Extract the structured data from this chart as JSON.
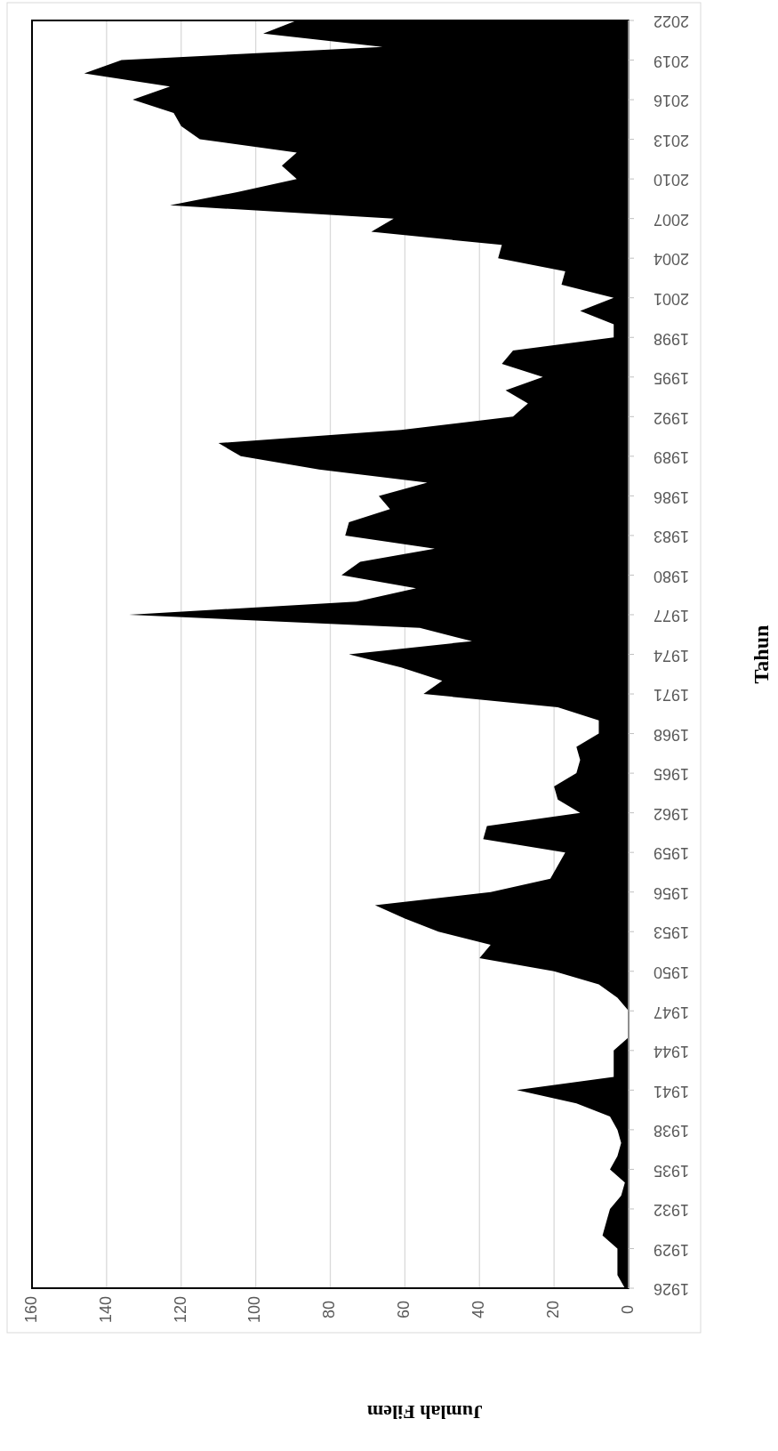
{
  "chart_data": {
    "type": "area",
    "orientation": "horizontal",
    "xlabel": "Jumlah Filem",
    "ylabel": "Tahun",
    "x": [
      1926,
      1927,
      1928,
      1929,
      1930,
      1931,
      1932,
      1933,
      1934,
      1935,
      1936,
      1937,
      1938,
      1939,
      1940,
      1941,
      1942,
      1943,
      1944,
      1945,
      1946,
      1947,
      1948,
      1949,
      1950,
      1951,
      1952,
      1953,
      1954,
      1955,
      1956,
      1957,
      1958,
      1959,
      1960,
      1961,
      1962,
      1963,
      1964,
      1965,
      1966,
      1967,
      1968,
      1969,
      1970,
      1971,
      1972,
      1973,
      1974,
      1975,
      1976,
      1977,
      1978,
      1979,
      1980,
      1981,
      1982,
      1983,
      1984,
      1985,
      1986,
      1987,
      1988,
      1989,
      1990,
      1991,
      1992,
      1993,
      1994,
      1995,
      1996,
      1997,
      1998,
      1999,
      2000,
      2001,
      2002,
      2003,
      2004,
      2005,
      2006,
      2007,
      2008,
      2009,
      2010,
      2011,
      2012,
      2013,
      2014,
      2015,
      2016,
      2017,
      2018,
      2019,
      2020,
      2021,
      2022
    ],
    "series": [
      {
        "color": "#000000",
        "values": [
          1,
          3,
          3,
          3,
          7,
          6,
          5,
          2,
          1,
          5,
          3,
          2,
          3,
          5,
          14,
          30,
          4,
          4,
          4,
          0,
          0,
          0,
          3,
          8,
          20,
          40,
          37,
          51,
          60,
          68,
          37,
          21,
          19,
          17,
          39,
          38,
          13,
          19,
          20,
          14,
          13,
          14,
          8,
          8,
          19,
          55,
          50,
          61,
          75,
          42,
          56,
          134,
          73,
          57,
          77,
          72,
          52,
          76,
          75,
          64,
          67,
          54,
          83,
          104,
          110,
          61,
          31,
          27,
          33,
          23,
          34,
          31,
          4,
          4,
          13,
          4,
          18,
          17,
          35,
          34,
          69,
          63,
          123,
          105,
          89,
          93,
          89,
          115,
          120,
          122,
          133,
          123,
          146,
          136,
          66,
          98,
          89
        ]
      }
    ],
    "ylim": [
      1926,
      2022
    ],
    "yticks": [
      1926,
      1929,
      1932,
      1935,
      1938,
      1941,
      1944,
      1947,
      1950,
      1953,
      1956,
      1959,
      1962,
      1965,
      1968,
      1971,
      1974,
      1977,
      1980,
      1983,
      1986,
      1989,
      1992,
      1995,
      1998,
      2001,
      2004,
      2007,
      2010,
      2013,
      2016,
      2019,
      2022
    ],
    "xlim": [
      160,
      0
    ],
    "xticks": [
      0,
      20,
      40,
      60,
      80,
      100,
      120,
      140,
      160
    ],
    "grid": "x"
  }
}
